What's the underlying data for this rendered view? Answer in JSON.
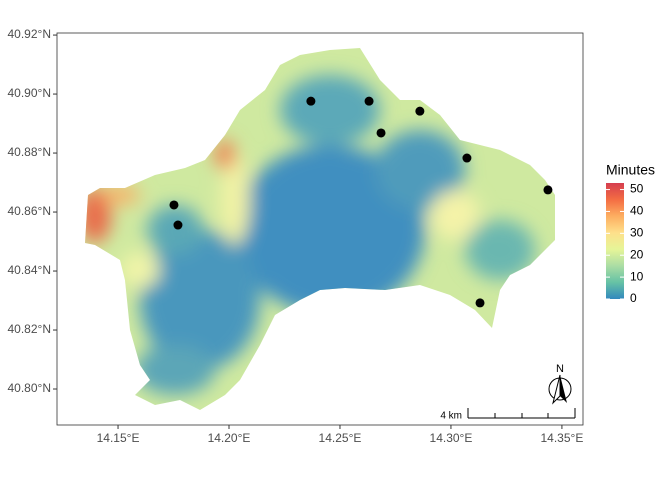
{
  "chart_data": {
    "type": "map",
    "xlim": [
      14.1225,
      14.3595
    ],
    "ylim": [
      40.7878,
      40.9207
    ],
    "xticks": [
      {
        "value": 14.15,
        "label": "14.15°E"
      },
      {
        "value": 14.2,
        "label": "14.20°E"
      },
      {
        "value": 14.25,
        "label": "14.25°E"
      },
      {
        "value": 14.3,
        "label": "14.30°E"
      },
      {
        "value": 14.35,
        "label": "14.35°E"
      }
    ],
    "yticks": [
      {
        "value": 40.8,
        "label": "40.80°N"
      },
      {
        "value": 40.82,
        "label": "40.82°N"
      },
      {
        "value": 40.84,
        "label": "40.84°N"
      },
      {
        "value": 40.86,
        "label": "40.86°N"
      },
      {
        "value": 40.88,
        "label": "40.88°N"
      },
      {
        "value": 40.9,
        "label": "40.90°N"
      },
      {
        "value": 40.92,
        "label": "40.92°N"
      }
    ],
    "points": {
      "color": "#000000",
      "x": [
        14.1752,
        14.177,
        14.2369,
        14.2631,
        14.2685,
        14.286,
        14.3072,
        14.3131,
        14.3437
      ],
      "y": [
        40.8624,
        40.8556,
        40.8976,
        40.8976,
        40.8868,
        40.8942,
        40.8783,
        40.8292,
        40.8675
      ]
    },
    "legend": {
      "title": "Minutes",
      "lim": [
        0,
        53
      ],
      "ticks": [
        0,
        10,
        20,
        30,
        40,
        50
      ],
      "colors": [
        "#3288bd",
        "#66c2a5",
        "#abdda4",
        "#e6f598",
        "#fee08b",
        "#fdae61",
        "#f46d43",
        "#d53e4f"
      ]
    },
    "scale_bar": "4 km",
    "north": "N"
  }
}
